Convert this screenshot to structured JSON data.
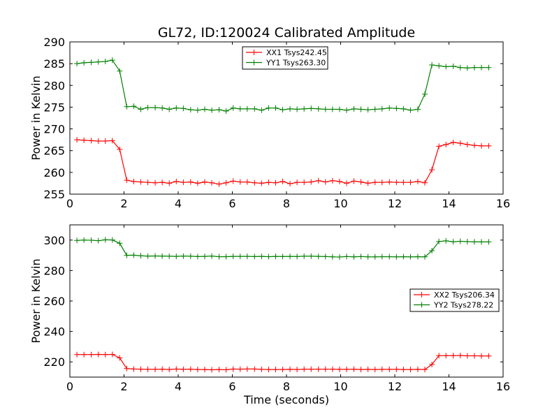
{
  "title": "GL72, ID:120024 Calibrated Amplitude",
  "colors": {
    "xx": "#ff0000",
    "yy": "#008000"
  },
  "chart_data": [
    {
      "type": "line",
      "title": "GL72, ID:120024 Calibrated Amplitude",
      "xlabel": "",
      "ylabel": "Power in Kelvin",
      "xlim": [
        0,
        16
      ],
      "ylim": [
        255,
        290
      ],
      "xticks": [
        "0",
        "2",
        "4",
        "6",
        "8",
        "10",
        "12",
        "14",
        "16"
      ],
      "yticks": [
        "255",
        "260",
        "265",
        "270",
        "275",
        "280",
        "285",
        "290"
      ],
      "grid": false,
      "legend_position": "top-center",
      "x": [
        0.26,
        0.52,
        0.79,
        1.05,
        1.31,
        1.57,
        1.84,
        2.1,
        2.36,
        2.62,
        2.88,
        3.15,
        3.41,
        3.67,
        3.93,
        4.19,
        4.46,
        4.72,
        4.98,
        5.24,
        5.51,
        5.77,
        6.03,
        6.29,
        6.55,
        6.82,
        7.08,
        7.34,
        7.6,
        7.86,
        8.13,
        8.39,
        8.65,
        8.91,
        9.18,
        9.44,
        9.7,
        9.96,
        10.22,
        10.49,
        10.75,
        11.01,
        11.27,
        11.53,
        11.8,
        12.06,
        12.32,
        12.58,
        12.85,
        13.11,
        13.37,
        13.63,
        13.89,
        14.16,
        14.42,
        14.68,
        14.94,
        15.2,
        15.47
      ],
      "series": [
        {
          "name": "XX1 Tsys242.45",
          "color": "#ff0000",
          "values": [
            267.5,
            267.4,
            267.3,
            267.2,
            267.2,
            267.3,
            265.3,
            258.2,
            257.9,
            257.8,
            257.7,
            257.6,
            257.7,
            257.5,
            257.9,
            257.7,
            257.8,
            257.5,
            257.8,
            257.6,
            257.3,
            257.6,
            258.0,
            257.8,
            257.8,
            257.6,
            257.5,
            257.7,
            257.6,
            257.9,
            257.4,
            257.7,
            257.7,
            257.8,
            258.1,
            257.8,
            258.1,
            257.9,
            257.5,
            258.0,
            257.8,
            257.5,
            257.7,
            257.7,
            257.8,
            257.7,
            257.7,
            257.7,
            257.9,
            257.6,
            260.6,
            266.0,
            266.4,
            266.9,
            266.7,
            266.4,
            266.2,
            266.1,
            266.1
          ]
        },
        {
          "name": "YY1 Tsys263.30",
          "color": "#008000",
          "values": [
            285.0,
            285.2,
            285.3,
            285.4,
            285.5,
            285.8,
            283.3,
            275.1,
            275.2,
            274.5,
            274.9,
            274.9,
            274.8,
            274.5,
            274.8,
            274.7,
            274.4,
            274.3,
            274.5,
            274.3,
            274.4,
            274.1,
            274.8,
            274.6,
            274.6,
            274.6,
            274.3,
            274.8,
            274.8,
            274.4,
            274.6,
            274.5,
            274.6,
            274.7,
            274.6,
            274.5,
            274.5,
            274.5,
            274.3,
            274.6,
            274.5,
            274.4,
            274.5,
            274.6,
            274.8,
            274.7,
            274.6,
            274.3,
            274.5,
            278.0,
            284.7,
            284.5,
            284.3,
            284.4,
            284.1,
            284.0,
            284.1,
            284.1,
            284.1
          ]
        }
      ]
    },
    {
      "type": "line",
      "title": "",
      "xlabel": "Time (seconds)",
      "ylabel": "Power in Kelvin",
      "xlim": [
        0,
        16
      ],
      "ylim": [
        210,
        310
      ],
      "xticks": [
        "0",
        "2",
        "4",
        "6",
        "8",
        "10",
        "12",
        "14",
        "16"
      ],
      "yticks": [
        "220",
        "240",
        "260",
        "280",
        "300"
      ],
      "grid": false,
      "legend_position": "center-right",
      "x": [
        0.26,
        0.52,
        0.79,
        1.05,
        1.31,
        1.57,
        1.84,
        2.1,
        2.36,
        2.62,
        2.88,
        3.15,
        3.41,
        3.67,
        3.93,
        4.19,
        4.46,
        4.72,
        4.98,
        5.24,
        5.51,
        5.77,
        6.03,
        6.29,
        6.55,
        6.82,
        7.08,
        7.34,
        7.6,
        7.86,
        8.13,
        8.39,
        8.65,
        8.91,
        9.18,
        9.44,
        9.7,
        9.96,
        10.22,
        10.49,
        10.75,
        11.01,
        11.27,
        11.53,
        11.8,
        12.06,
        12.32,
        12.58,
        12.85,
        13.11,
        13.37,
        13.63,
        13.89,
        14.16,
        14.42,
        14.68,
        14.94,
        15.2,
        15.47
      ],
      "series": [
        {
          "name": "XX2 Tsys206.34",
          "color": "#ff0000",
          "values": [
            224.8,
            224.8,
            224.8,
            224.9,
            224.8,
            224.9,
            222.6,
            215.6,
            215.3,
            215.2,
            215.1,
            215.1,
            215.2,
            215.0,
            215.3,
            215.1,
            215.2,
            215.0,
            215.0,
            214.8,
            215.0,
            214.8,
            215.3,
            215.2,
            215.3,
            215.3,
            215.1,
            215.0,
            215.0,
            215.0,
            215.1,
            215.0,
            215.2,
            215.2,
            215.2,
            215.2,
            215.2,
            215.1,
            215.1,
            215.2,
            215.0,
            215.1,
            215.0,
            215.1,
            215.1,
            215.1,
            215.0,
            215.0,
            215.1,
            215.0,
            218.3,
            224.1,
            224.1,
            224.1,
            224.2,
            224.0,
            224.0,
            223.9,
            223.9
          ]
        },
        {
          "name": "YY2 Tsys278.22",
          "color": "#008000",
          "values": [
            299.8,
            300.0,
            299.9,
            299.6,
            300.2,
            300.1,
            297.9,
            290.0,
            290.1,
            289.7,
            289.5,
            289.6,
            289.5,
            289.4,
            289.3,
            289.5,
            289.4,
            289.2,
            289.3,
            289.5,
            289.1,
            289.1,
            289.3,
            289.3,
            289.3,
            289.2,
            289.3,
            289.1,
            289.3,
            289.2,
            289.3,
            289.2,
            289.4,
            289.4,
            289.3,
            289.2,
            289.0,
            288.9,
            289.2,
            289.0,
            289.2,
            289.0,
            289.0,
            289.1,
            289.1,
            289.0,
            289.1,
            289.0,
            289.1,
            289.0,
            293.0,
            299.1,
            299.5,
            298.9,
            299.2,
            299.0,
            298.8,
            298.8,
            298.8
          ]
        }
      ]
    }
  ]
}
